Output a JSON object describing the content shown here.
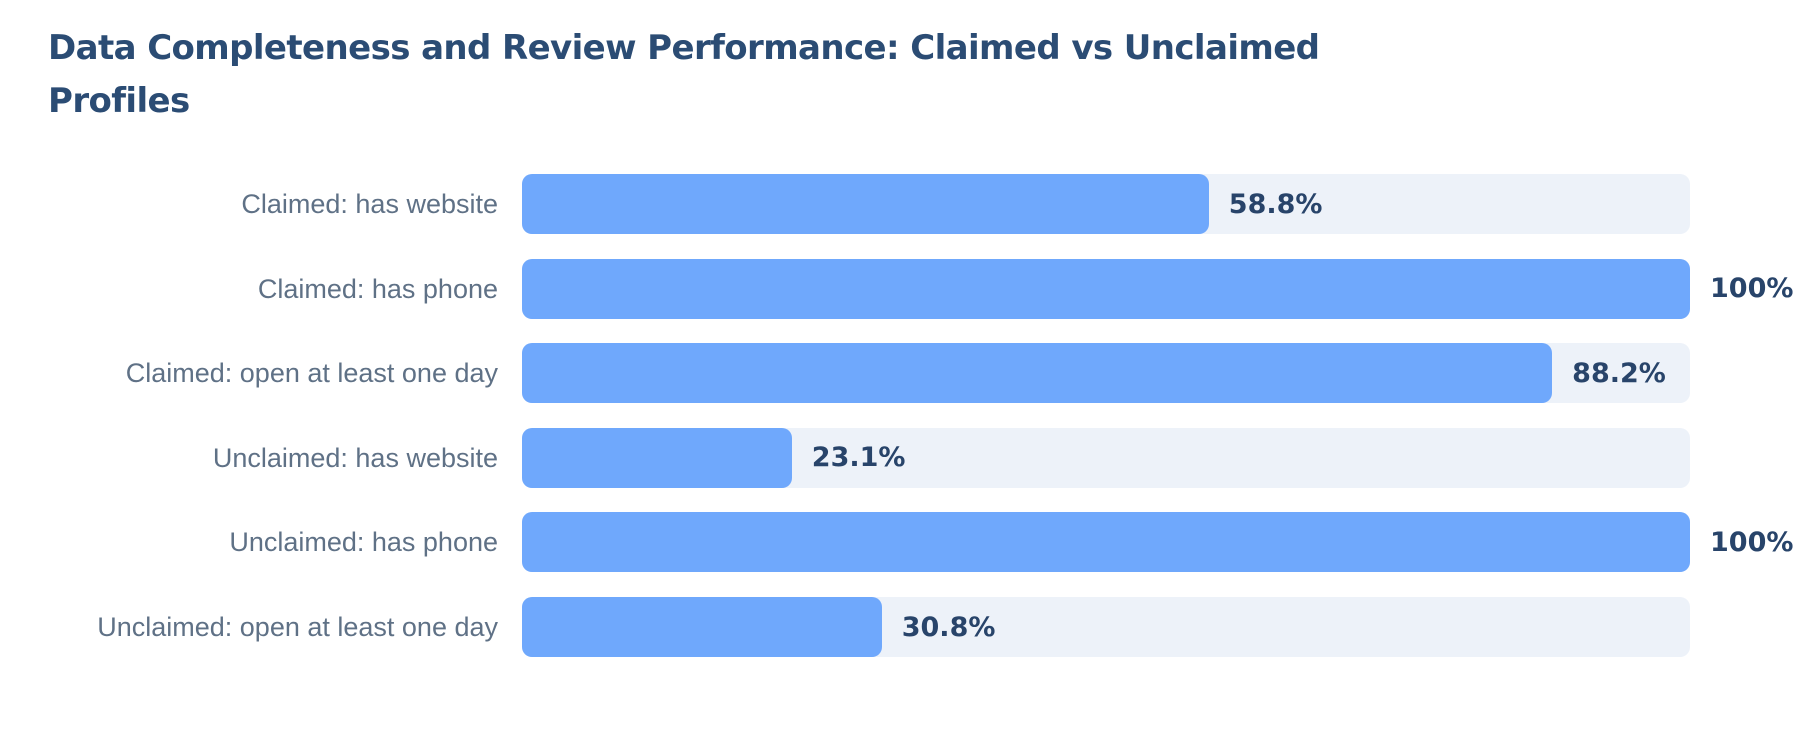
{
  "chart_data": {
    "type": "bar",
    "orientation": "horizontal",
    "title": "Data Completeness and Review Performance: Claimed vs Unclaimed Profiles",
    "categories": [
      "Claimed: has website",
      "Claimed: has phone",
      "Claimed: open at least one day",
      "Unclaimed: has website",
      "Unclaimed: has phone",
      "Unclaimed: open at least one day"
    ],
    "values": [
      58.8,
      100,
      88.2,
      23.1,
      100,
      30.8
    ],
    "value_labels": [
      "58.8%",
      "100%",
      "88.2%",
      "23.1%",
      "100%",
      "30.8%"
    ],
    "unit": "%",
    "xlim": [
      0,
      100
    ],
    "grid": false,
    "legend": "none",
    "colors": {
      "bar": "#6fa8fc",
      "track": "#edf2f9",
      "title": "#2b4c74",
      "category_label": "#5f7186",
      "value_label": "#28446a"
    }
  }
}
